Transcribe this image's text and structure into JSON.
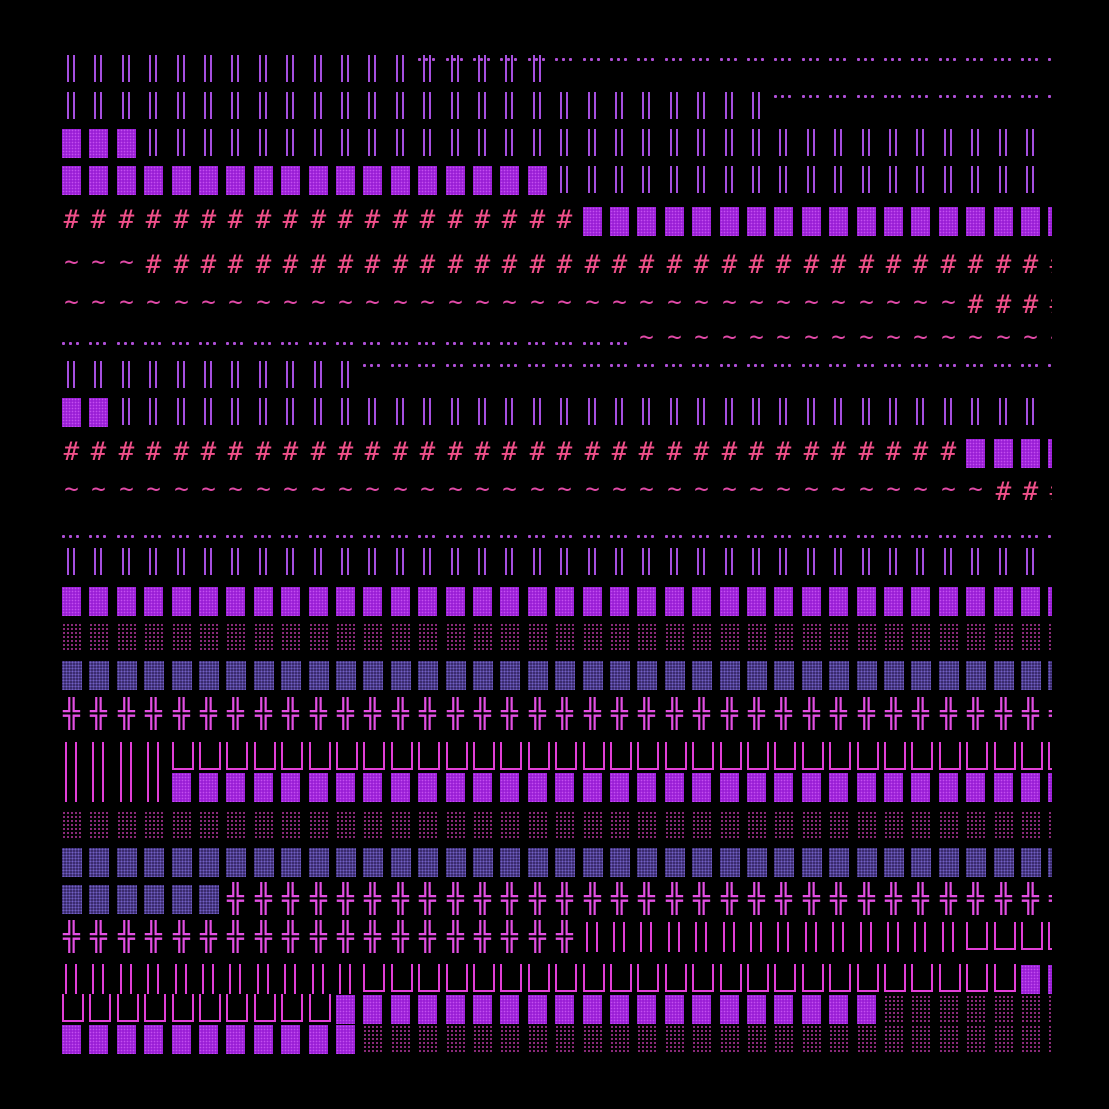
{
  "rows": [
    {
      "top": 0,
      "runs": [
        [
          "empty",
          13
        ],
        [
          "dots",
          24
        ]
      ]
    },
    {
      "top": 0,
      "runs": [
        [
          "bars",
          18
        ],
        [
          "dots",
          19
        ]
      ]
    },
    {
      "top": 37,
      "runs": [
        [
          "bars",
          26
        ],
        [
          "dots",
          11
        ]
      ]
    },
    {
      "top": 74,
      "runs": [
        [
          "block",
          3
        ],
        [
          "bars",
          34
        ]
      ]
    },
    {
      "top": 111,
      "runs": [
        [
          "block",
          18
        ],
        [
          "bars",
          19
        ]
      ]
    },
    {
      "top": 152,
      "runs": [
        [
          "hash",
          19
        ],
        [
          "block",
          18
        ]
      ]
    },
    {
      "top": 197,
      "runs": [
        [
          "tilde",
          3
        ],
        [
          "hash",
          34
        ]
      ]
    },
    {
      "top": 237,
      "runs": [
        [
          "tilde",
          33
        ],
        [
          "hash",
          4
        ]
      ]
    },
    {
      "top": 272,
      "runs": [
        [
          "empty",
          21
        ],
        [
          "tilde",
          16
        ]
      ]
    },
    {
      "top": 284,
      "runs": [
        [
          "dots",
          21
        ],
        [
          "empty",
          16
        ]
      ]
    },
    {
      "top": 306,
      "runs": [
        [
          "bars",
          11
        ],
        [
          "dots",
          26
        ]
      ]
    },
    {
      "top": 343,
      "runs": [
        [
          "block",
          2
        ],
        [
          "bars",
          35
        ]
      ]
    },
    {
      "top": 384,
      "runs": [
        [
          "hash",
          33
        ],
        [
          "block",
          4
        ]
      ]
    },
    {
      "top": 424,
      "runs": [
        [
          "tilde",
          34
        ],
        [
          "hash",
          3
        ]
      ]
    },
    {
      "top": 477,
      "runs": [
        [
          "dots",
          37
        ]
      ]
    },
    {
      "top": 493,
      "runs": [
        [
          "bars",
          37
        ]
      ]
    },
    {
      "top": 532,
      "runs": [
        [
          "block",
          37
        ]
      ]
    },
    {
      "top": 568,
      "runs": [
        [
          "shade",
          37
        ]
      ]
    },
    {
      "top": 606,
      "runs": [
        [
          "shade2",
          37
        ]
      ]
    },
    {
      "top": 645,
      "runs": [
        [
          "cross",
          37
        ]
      ]
    },
    {
      "top": 688,
      "runs": [
        [
          "pipe",
          4
        ],
        [
          "cup",
          33
        ]
      ]
    },
    {
      "top": 718,
      "runs": [
        [
          "pipe",
          4
        ],
        [
          "block",
          33
        ]
      ]
    },
    {
      "top": 756,
      "runs": [
        [
          "shade",
          37
        ]
      ]
    },
    {
      "top": 793,
      "runs": [
        [
          "shade2",
          37
        ]
      ]
    },
    {
      "top": 830,
      "runs": [
        [
          "shade2",
          6
        ],
        [
          "cross",
          31
        ]
      ]
    },
    {
      "top": 868,
      "runs": [
        [
          "cross",
          19
        ],
        [
          "pipe",
          14
        ],
        [
          "cup",
          4
        ]
      ]
    },
    {
      "top": 910,
      "runs": [
        [
          "pipe",
          11
        ],
        [
          "cup",
          24
        ],
        [
          "block",
          2
        ]
      ]
    },
    {
      "top": 940,
      "runs": [
        [
          "cup",
          10
        ],
        [
          "block",
          20
        ],
        [
          "shade",
          7
        ]
      ]
    },
    {
      "top": 970,
      "runs": [
        [
          "block",
          11
        ],
        [
          "shade",
          26
        ]
      ]
    }
  ]
}
